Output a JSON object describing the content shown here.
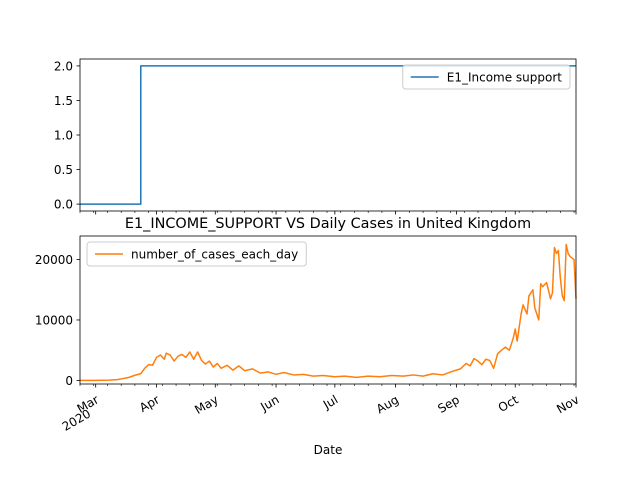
{
  "chart_data": [
    {
      "type": "line",
      "title": "",
      "xlabel": "",
      "ylabel": "",
      "ylim": [
        -0.1,
        2.1
      ],
      "yticks": [
        0.0,
        0.5,
        1.0,
        1.5,
        2.0
      ],
      "ytick_labels": [
        "0.0",
        "0.5",
        "1.0",
        "1.5",
        "2.0"
      ],
      "legend_position": "upper right",
      "series": [
        {
          "name": "E1_Income support",
          "color": "#1f77b4",
          "drawstyle": "steps-post",
          "points": [
            [
              "2020-02-22",
              0
            ],
            [
              "2020-03-24",
              2
            ],
            [
              "2020-11-01",
              2
            ]
          ]
        }
      ]
    },
    {
      "type": "line",
      "title": "E1_INCOME_SUPPORT VS Daily Cases in United Kingdom",
      "xlabel": "Date",
      "ylabel": "",
      "ylim": [
        -600,
        23900
      ],
      "yticks": [
        0,
        10000,
        20000
      ],
      "ytick_labels": [
        "0",
        "10000",
        "20000"
      ],
      "legend_position": "upper left",
      "series": [
        {
          "name": "number_of_cases_each_day",
          "color": "#ff7f0e",
          "points": [
            [
              "2020-02-22",
              0
            ],
            [
              "2020-03-01",
              10
            ],
            [
              "2020-03-08",
              40
            ],
            [
              "2020-03-12",
              130
            ],
            [
              "2020-03-15",
              300
            ],
            [
              "2020-03-18",
              500
            ],
            [
              "2020-03-21",
              850
            ],
            [
              "2020-03-24",
              1100
            ],
            [
              "2020-03-26",
              2000
            ],
            [
              "2020-03-28",
              2600
            ],
            [
              "2020-03-30",
              2500
            ],
            [
              "2020-04-01",
              3800
            ],
            [
              "2020-04-03",
              4200
            ],
            [
              "2020-04-05",
              3500
            ],
            [
              "2020-04-06",
              4500
            ],
            [
              "2020-04-08",
              4200
            ],
            [
              "2020-04-10",
              3200
            ],
            [
              "2020-04-12",
              4000
            ],
            [
              "2020-04-14",
              4300
            ],
            [
              "2020-04-16",
              3800
            ],
            [
              "2020-04-18",
              4700
            ],
            [
              "2020-04-20",
              3500
            ],
            [
              "2020-04-22",
              4700
            ],
            [
              "2020-04-24",
              3300
            ],
            [
              "2020-04-26",
              2700
            ],
            [
              "2020-04-28",
              3200
            ],
            [
              "2020-04-30",
              2200
            ],
            [
              "2020-05-02",
              2800
            ],
            [
              "2020-05-04",
              2000
            ],
            [
              "2020-05-07",
              2500
            ],
            [
              "2020-05-10",
              1700
            ],
            [
              "2020-05-13",
              2400
            ],
            [
              "2020-05-16",
              1600
            ],
            [
              "2020-05-20",
              1900
            ],
            [
              "2020-05-24",
              1200
            ],
            [
              "2020-05-28",
              1400
            ],
            [
              "2020-06-01",
              1000
            ],
            [
              "2020-06-05",
              1300
            ],
            [
              "2020-06-10",
              900
            ],
            [
              "2020-06-15",
              1000
            ],
            [
              "2020-06-20",
              700
            ],
            [
              "2020-06-25",
              800
            ],
            [
              "2020-07-01",
              600
            ],
            [
              "2020-07-06",
              700
            ],
            [
              "2020-07-12",
              500
            ],
            [
              "2020-07-18",
              700
            ],
            [
              "2020-07-24",
              600
            ],
            [
              "2020-07-30",
              800
            ],
            [
              "2020-08-05",
              700
            ],
            [
              "2020-08-10",
              900
            ],
            [
              "2020-08-15",
              700
            ],
            [
              "2020-08-20",
              1100
            ],
            [
              "2020-08-25",
              900
            ],
            [
              "2020-08-30",
              1500
            ],
            [
              "2020-09-03",
              1900
            ],
            [
              "2020-09-06",
              2800
            ],
            [
              "2020-09-08",
              2400
            ],
            [
              "2020-09-10",
              3600
            ],
            [
              "2020-09-12",
              3200
            ],
            [
              "2020-09-14",
              2600
            ],
            [
              "2020-09-16",
              3500
            ],
            [
              "2020-09-18",
              3300
            ],
            [
              "2020-09-20",
              2000
            ],
            [
              "2020-09-22",
              4400
            ],
            [
              "2020-09-24",
              5000
            ],
            [
              "2020-09-26",
              5500
            ],
            [
              "2020-09-28",
              5000
            ],
            [
              "2020-09-30",
              7000
            ],
            [
              "2020-10-01",
              8500
            ],
            [
              "2020-10-02",
              6500
            ],
            [
              "2020-10-04",
              11000
            ],
            [
              "2020-10-05",
              12500
            ],
            [
              "2020-10-07",
              11000
            ],
            [
              "2020-10-08",
              14000
            ],
            [
              "2020-10-10",
              15000
            ],
            [
              "2020-10-11",
              12000
            ],
            [
              "2020-10-13",
              10000
            ],
            [
              "2020-10-14",
              16000
            ],
            [
              "2020-10-15",
              15500
            ],
            [
              "2020-10-17",
              16200
            ],
            [
              "2020-10-19",
              13500
            ],
            [
              "2020-10-20",
              14500
            ],
            [
              "2020-10-21",
              22000
            ],
            [
              "2020-10-22",
              21000
            ],
            [
              "2020-10-23",
              21500
            ],
            [
              "2020-10-24",
              17000
            ],
            [
              "2020-10-25",
              14000
            ],
            [
              "2020-10-26",
              13200
            ],
            [
              "2020-10-27",
              22500
            ],
            [
              "2020-10-28",
              21000
            ],
            [
              "2020-10-29",
              20500
            ],
            [
              "2020-10-31",
              20000
            ],
            [
              "2020-11-01",
              13500
            ]
          ]
        }
      ],
      "x_ticks": [
        {
          "date": "2020-03-01",
          "label": "Mar",
          "sublabel": "2020"
        },
        {
          "date": "2020-04-01",
          "label": "Apr"
        },
        {
          "date": "2020-05-01",
          "label": "May"
        },
        {
          "date": "2020-06-01",
          "label": "Jun"
        },
        {
          "date": "2020-07-01",
          "label": "Jul"
        },
        {
          "date": "2020-08-01",
          "label": "Aug"
        },
        {
          "date": "2020-09-01",
          "label": "Sep"
        },
        {
          "date": "2020-10-01",
          "label": "Oct"
        },
        {
          "date": "2020-11-01",
          "label": "Nov"
        }
      ]
    }
  ],
  "xrange": [
    "2020-02-22",
    "2020-11-01"
  ],
  "top_ylim_label": "",
  "xlabel": "Date"
}
